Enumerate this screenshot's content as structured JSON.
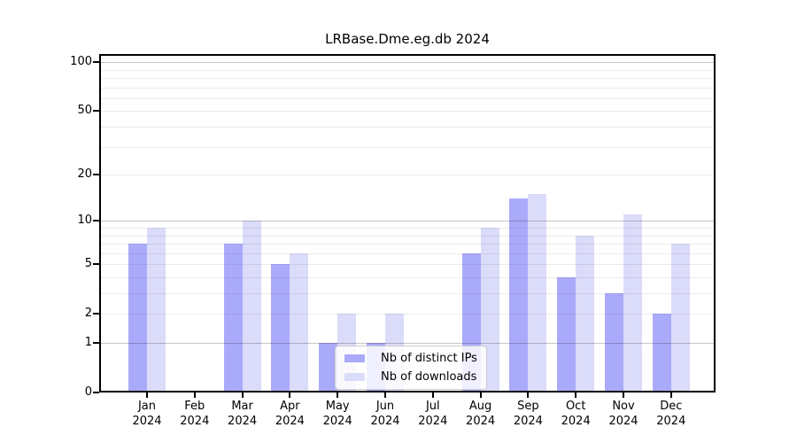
{
  "title": "LRBase.Dme.eg.db 2024",
  "chart_data": {
    "type": "bar",
    "title": "LRBase.Dme.eg.db 2024",
    "categories": [
      "Jan 2024",
      "Feb 2024",
      "Mar 2024",
      "Apr 2024",
      "May 2024",
      "Jun 2024",
      "Jul 2024",
      "Aug 2024",
      "Sep 2024",
      "Oct 2024",
      "Nov 2024",
      "Dec 2024"
    ],
    "months": [
      {
        "abbr": "Jan",
        "year": "2024"
      },
      {
        "abbr": "Feb",
        "year": "2024"
      },
      {
        "abbr": "Mar",
        "year": "2024"
      },
      {
        "abbr": "Apr",
        "year": "2024"
      },
      {
        "abbr": "May",
        "year": "2024"
      },
      {
        "abbr": "Jun",
        "year": "2024"
      },
      {
        "abbr": "Jul",
        "year": "2024"
      },
      {
        "abbr": "Aug",
        "year": "2024"
      },
      {
        "abbr": "Sep",
        "year": "2024"
      },
      {
        "abbr": "Oct",
        "year": "2024"
      },
      {
        "abbr": "Nov",
        "year": "2024"
      },
      {
        "abbr": "Dec",
        "year": "2024"
      }
    ],
    "series": [
      {
        "name": "Nb of distinct IPs",
        "color": "#aaaafa",
        "values": [
          7,
          0,
          7,
          5,
          1,
          1,
          0,
          6,
          14,
          4,
          3,
          2
        ]
      },
      {
        "name": "Nb of downloads",
        "color": "#dbdbfa",
        "values": [
          9,
          0,
          10,
          6,
          2,
          2,
          0,
          9,
          15,
          8,
          11,
          7
        ]
      }
    ],
    "y_axis": {
      "scale": "log10(1+value)",
      "tick_values": [
        100,
        50,
        20,
        10,
        5,
        2,
        1,
        0
      ],
      "tick_labels": [
        "100",
        "50",
        "20",
        "10",
        "5",
        "2",
        "1",
        "0"
      ],
      "major_gridlines": [
        1,
        10,
        100
      ],
      "minor_gridlines": [
        2,
        3,
        4,
        5,
        6,
        7,
        8,
        9,
        20,
        30,
        40,
        50,
        60,
        70,
        80,
        90
      ],
      "ylim": [
        0,
        115
      ]
    },
    "legend_position": "bottom-center",
    "grid": true
  },
  "colors": {
    "background": "#ffffff",
    "axis": "#000000",
    "bar_distinct_ips": "#aaaafa",
    "bar_downloads": "#dbdbfa",
    "grid_minor": "#ececec",
    "grid_major": "#c7c7c7",
    "legend_border": "#cccccc"
  }
}
